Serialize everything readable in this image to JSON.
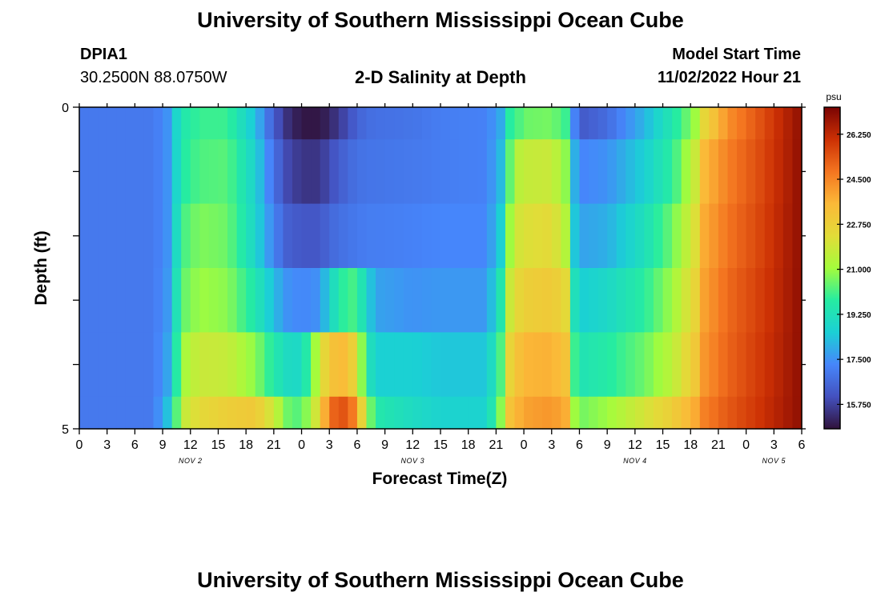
{
  "page": {
    "title": "University of Southern Mississippi Ocean Cube",
    "title_repeat": "University of Southern Mississippi Ocean Cube",
    "station": {
      "id": "DPIA1",
      "coords": "30.2500N  88.0750W"
    },
    "model_start": {
      "label": "Model Start Time",
      "value": "11/02/2022 Hour 21"
    }
  },
  "chart_data": {
    "type": "heatmap",
    "title": "2-D Salinity at Depth",
    "xlabel": "Forecast Time(Z)",
    "ylabel": "Depth (ft)",
    "colorbar_unit": "psu",
    "x_tick_labels": [
      "0",
      "3",
      "6",
      "9",
      "12",
      "15",
      "18",
      "21",
      "0",
      "3",
      "6",
      "9",
      "12",
      "15",
      "18",
      "21",
      "0",
      "3",
      "6",
      "9",
      "12",
      "15",
      "18",
      "21",
      "0",
      "3",
      "6"
    ],
    "x_tick_hours": [
      0,
      3,
      6,
      9,
      12,
      15,
      18,
      21,
      24,
      27,
      30,
      33,
      36,
      39,
      42,
      45,
      48,
      51,
      54,
      57,
      60,
      63,
      66,
      69,
      72,
      75,
      78
    ],
    "day_labels": [
      {
        "label": "NOV 2",
        "hour": 12
      },
      {
        "label": "NOV 3",
        "hour": 36
      },
      {
        "label": "NOV 4",
        "hour": 60
      },
      {
        "label": "NOV 5",
        "hour": 75
      }
    ],
    "xlim_hours": [
      0,
      78
    ],
    "y_tick_labels": [
      "0",
      "5"
    ],
    "ylim_ft": [
      0,
      5
    ],
    "colorbar_ticks": [
      15.75,
      17.5,
      19.25,
      21.0,
      22.75,
      24.5,
      26.25
    ],
    "colorbar_tick_labels": [
      "15.750",
      "17.500",
      "19.250",
      "21.000",
      "22.750",
      "24.500",
      "26.250"
    ],
    "color_range": [
      14.8,
      27.3
    ],
    "depth_layers_ft": [
      [
        0.0,
        0.5
      ],
      [
        0.5,
        1.5
      ],
      [
        1.5,
        2.5
      ],
      [
        2.5,
        3.5
      ],
      [
        3.5,
        4.5
      ],
      [
        4.5,
        5.0
      ]
    ],
    "salinity_keyframes": {
      "hours": [
        0,
        8,
        9.5,
        10.5,
        11.5,
        13,
        16,
        19,
        21,
        22.5,
        24,
        26,
        27,
        29,
        30,
        31,
        32,
        36,
        39,
        44,
        45.5,
        46.5,
        47.5,
        48.5,
        51,
        53,
        53.5,
        54.5,
        57,
        61,
        64,
        66.5,
        67.5,
        70,
        74,
        78
      ],
      "layers": [
        [
          17.0,
          17.0,
          17.5,
          18.8,
          19.6,
          20.0,
          20.0,
          18.3,
          16.3,
          15.4,
          14.9,
          14.9,
          15.2,
          16.0,
          16.5,
          16.7,
          16.8,
          16.9,
          17.1,
          17.2,
          17.9,
          19.8,
          20.2,
          20.5,
          20.6,
          19.8,
          17.2,
          16.3,
          16.7,
          18.1,
          19.5,
          21.0,
          22.5,
          24.3,
          25.6,
          27.0
        ],
        [
          17.0,
          17.0,
          17.5,
          18.8,
          19.8,
          20.2,
          20.3,
          18.7,
          16.8,
          15.9,
          15.5,
          15.5,
          16.0,
          16.6,
          16.8,
          16.9,
          16.9,
          17.0,
          17.1,
          17.2,
          18.2,
          20.4,
          21.5,
          21.7,
          21.8,
          20.5,
          18.0,
          17.3,
          17.5,
          18.6,
          19.8,
          21.8,
          23.5,
          24.6,
          25.7,
          27.0
        ],
        [
          17.0,
          17.0,
          17.5,
          19.0,
          20.2,
          20.7,
          20.5,
          18.8,
          17.2,
          16.4,
          16.2,
          16.2,
          16.6,
          16.9,
          17.0,
          17.1,
          17.1,
          17.2,
          17.3,
          17.3,
          18.6,
          21.0,
          22.0,
          22.2,
          22.4,
          21.0,
          18.4,
          17.8,
          18.0,
          19.2,
          20.5,
          22.2,
          23.8,
          24.8,
          25.8,
          27.0
        ],
        [
          17.0,
          17.0,
          17.6,
          19.3,
          20.5,
          21.0,
          20.8,
          19.5,
          18.2,
          17.5,
          17.3,
          17.5,
          18.8,
          20.2,
          20.0,
          18.8,
          17.8,
          17.5,
          17.6,
          17.6,
          19.5,
          21.8,
          22.5,
          22.8,
          23.0,
          22.2,
          19.2,
          18.6,
          18.9,
          19.8,
          21.0,
          22.6,
          24.0,
          25.0,
          25.9,
          27.0
        ],
        [
          17.0,
          17.0,
          17.8,
          19.7,
          21.2,
          21.8,
          21.7,
          20.8,
          19.6,
          19.0,
          18.9,
          21.8,
          23.2,
          23.5,
          22.0,
          19.6,
          18.6,
          18.6,
          18.4,
          18.4,
          20.2,
          22.6,
          23.3,
          23.6,
          23.7,
          23.0,
          20.0,
          19.4,
          19.7,
          20.5,
          21.5,
          23.0,
          24.2,
          25.1,
          26.0,
          27.0
        ],
        [
          17.0,
          17.0,
          18.3,
          20.3,
          21.8,
          22.4,
          22.8,
          23.0,
          21.8,
          20.5,
          20.2,
          22.5,
          25.0,
          25.5,
          24.0,
          21.3,
          19.6,
          19.0,
          18.7,
          18.7,
          20.8,
          23.2,
          23.7,
          24.0,
          24.2,
          23.6,
          21.0,
          20.6,
          21.0,
          22.0,
          22.8,
          23.8,
          24.6,
          25.3,
          26.1,
          27.0
        ]
      ]
    }
  }
}
